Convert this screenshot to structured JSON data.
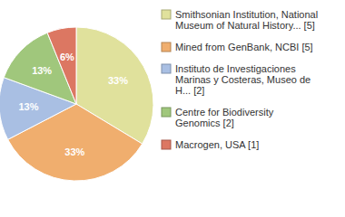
{
  "chart_data": {
    "type": "pie",
    "categories": [
      "Smithsonian Institution, National Museum of Natural History... [5]",
      "Mined from GenBank, NCBI [5]",
      "Instituto de Investigaciones Marinas y Costeras, Museo de H... [2]",
      "Centre for Biodiversity Genomics [2]",
      "Macrogen, USA [1]"
    ],
    "values": [
      33,
      33,
      13,
      13,
      6
    ],
    "value_labels": [
      "33%",
      "33%",
      "13%",
      "13%",
      "6%"
    ],
    "colors": [
      "#e0e19c",
      "#f0ae6e",
      "#a9bfe3",
      "#a0c77c",
      "#dc7762"
    ],
    "data_labels": true,
    "legend": "right"
  }
}
